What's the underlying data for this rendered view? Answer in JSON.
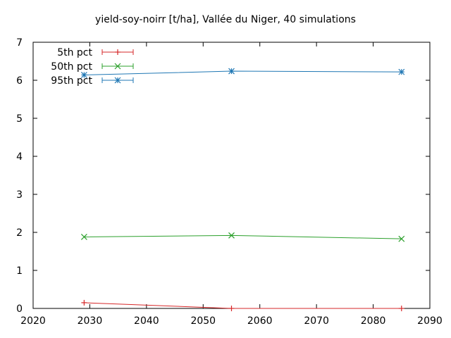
{
  "chart_data": {
    "type": "line",
    "title": "yield-soy-noirr [t/ha], Vallée du Niger, 40 simulations",
    "xlabel": "",
    "ylabel": "",
    "xlim": [
      2020,
      2090
    ],
    "ylim": [
      0,
      7
    ],
    "x_ticks": [
      2020,
      2030,
      2040,
      2050,
      2060,
      2070,
      2080,
      2090
    ],
    "y_ticks": [
      0,
      1,
      2,
      3,
      4,
      5,
      6,
      7
    ],
    "grid": false,
    "legend_position": "top-left",
    "x": [
      2029,
      2055,
      2085
    ],
    "series": [
      {
        "name": "5th pct",
        "color": "#d62728",
        "marker": "plus",
        "values": [
          0.15,
          0.0,
          0.0
        ]
      },
      {
        "name": "50th pct",
        "color": "#2ca02c",
        "marker": "cross",
        "values": [
          1.88,
          1.92,
          1.83
        ]
      },
      {
        "name": "95th pct",
        "color": "#1f77b4",
        "marker": "star",
        "values": [
          6.14,
          6.24,
          6.22
        ]
      }
    ]
  }
}
